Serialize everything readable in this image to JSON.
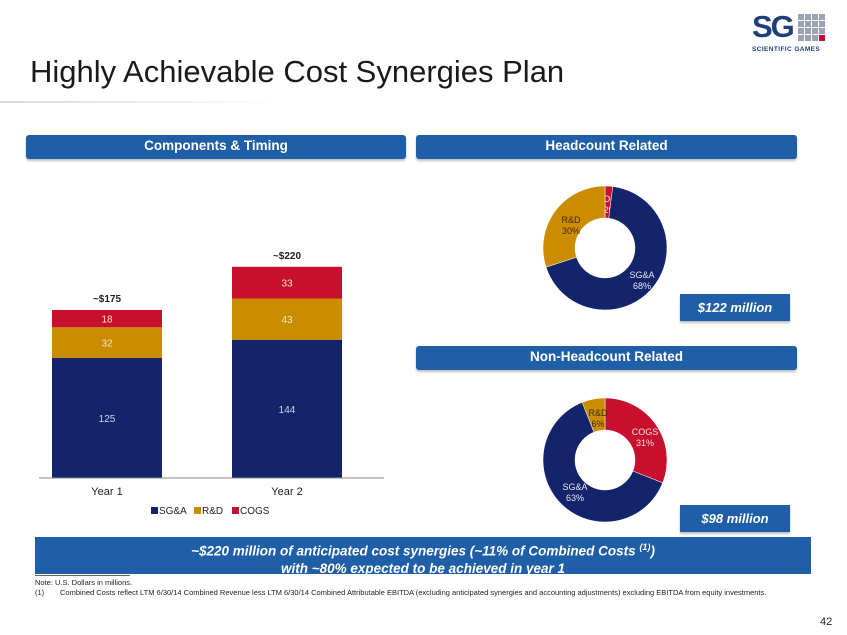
{
  "title": "Highly Achievable Cost Synergies Plan",
  "logo": {
    "mark": "SG",
    "subtitle": "SCIENTIFIC GAMES"
  },
  "sections": {
    "components": "Components & Timing",
    "headcount": "Headcount Related",
    "non_headcount": "Non-Headcount Related"
  },
  "headcount_total": "$122 million",
  "non_headcount_total": "$98 million",
  "callout": {
    "line1_before": "~$220 million of anticipated cost synergies (~11% of Combined Costs ",
    "line1_sup": "(1)",
    "line1_after": ")",
    "line2": "with ~80% expected to be achieved in year 1"
  },
  "notes": {
    "note": "Note: U.S. Dollars in millions.",
    "footnote_num": "(1)",
    "footnote_text": "Combined Costs reflect LTM 6/30/14 Combined Revenue less LTM 6/30/14 Combined Attributable EBITDA (excluding anticipated synergies and accounting adjustments) excluding EBITDA from equity investments."
  },
  "page_number": "42",
  "colors": {
    "sga": "#14246a",
    "rd": "#cc8c00",
    "cogs": "#c8102e",
    "banner": "#1f5fa8"
  },
  "chart_data": [
    {
      "type": "bar",
      "stacked": true,
      "categories": [
        "Year 1",
        "Year 2"
      ],
      "totals": [
        "~$175",
        "~$220"
      ],
      "series": [
        {
          "name": "SG&A",
          "values": [
            125,
            144
          ]
        },
        {
          "name": "R&D",
          "values": [
            32,
            43
          ]
        },
        {
          "name": "COGS",
          "values": [
            18,
            33
          ]
        }
      ],
      "legend": "bottom",
      "ylim": [
        0,
        240
      ],
      "grid": false
    },
    {
      "type": "pie",
      "donut": true,
      "slices": [
        {
          "name": "COGS",
          "label": "2%",
          "value": 2
        },
        {
          "name": "SG&A",
          "label": "68%",
          "value": 68
        },
        {
          "name": "R&D",
          "label": "30%",
          "value": 30
        }
      ]
    },
    {
      "type": "pie",
      "donut": true,
      "slices": [
        {
          "name": "COGS",
          "label": "31%",
          "value": 31
        },
        {
          "name": "SG&A",
          "label": "63%",
          "value": 63
        },
        {
          "name": "R&D",
          "label": "6%",
          "value": 6
        }
      ]
    }
  ]
}
